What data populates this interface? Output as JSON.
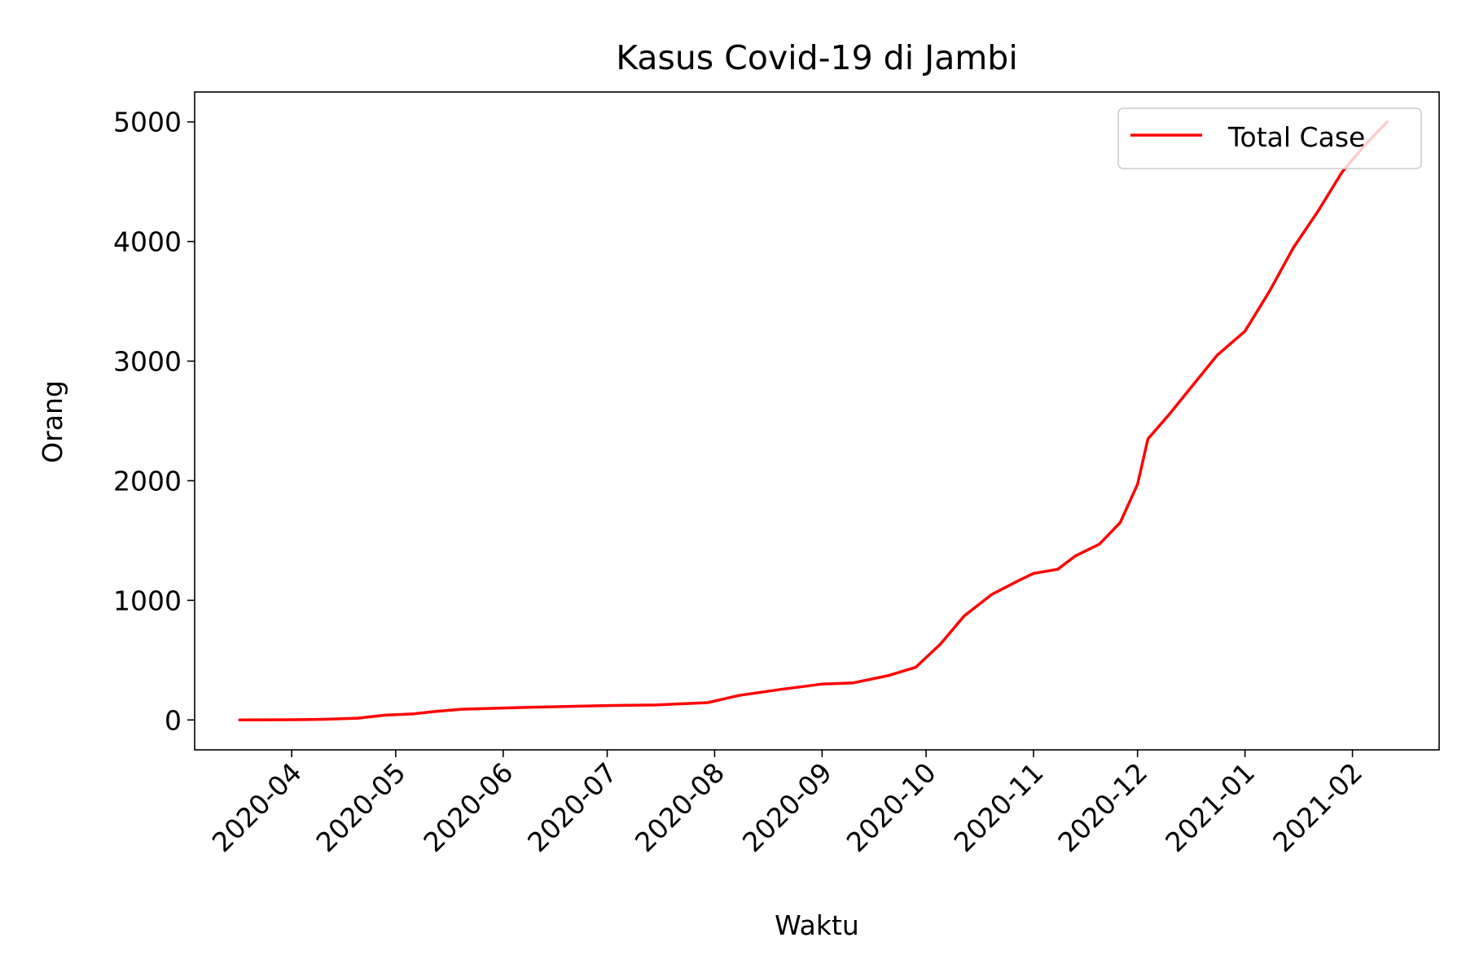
{
  "chart_data": {
    "type": "line",
    "title": "Kasus Covid-19 di Jambi",
    "xlabel": "Waktu",
    "ylabel": "Orang",
    "ylim": [
      -250,
      5250
    ],
    "xlim": [
      "2020-03-04",
      "2021-02-26"
    ],
    "legend_position": "top-right",
    "grid": false,
    "y_ticks": [
      0,
      1000,
      2000,
      3000,
      4000,
      5000
    ],
    "x_ticks": [
      "2020-04-01",
      "2020-05-01",
      "2020-06-01",
      "2020-07-01",
      "2020-08-01",
      "2020-09-01",
      "2020-10-01",
      "2020-11-01",
      "2020-12-01",
      "2021-01-01",
      "2021-02-01"
    ],
    "x_tick_labels": [
      "2020-04",
      "2020-05",
      "2020-06",
      "2020-07",
      "2020-08",
      "2020-09",
      "2020-10",
      "2020-11",
      "2020-12",
      "2021-01",
      "2021-02"
    ],
    "series": [
      {
        "name": "Total Case",
        "color": "#ff0000",
        "x": [
          "2020-03-17",
          "2020-03-25",
          "2020-04-01",
          "2020-04-10",
          "2020-04-20",
          "2020-04-28",
          "2020-05-06",
          "2020-05-12",
          "2020-05-20",
          "2020-06-01",
          "2020-06-15",
          "2020-07-01",
          "2020-07-15",
          "2020-07-30",
          "2020-08-08",
          "2020-08-20",
          "2020-09-01",
          "2020-09-10",
          "2020-09-20",
          "2020-09-28",
          "2020-10-05",
          "2020-10-12",
          "2020-10-20",
          "2020-10-28",
          "2020-11-01",
          "2020-11-08",
          "2020-11-13",
          "2020-11-20",
          "2020-11-26",
          "2020-12-01",
          "2020-12-04",
          "2020-12-10",
          "2020-12-17",
          "2020-12-24",
          "2021-01-01",
          "2021-01-08",
          "2021-01-15",
          "2021-01-22",
          "2021-01-29",
          "2021-02-05",
          "2021-02-11"
        ],
        "y": [
          0,
          1,
          2,
          5,
          15,
          40,
          50,
          70,
          90,
          100,
          110,
          120,
          125,
          145,
          205,
          255,
          300,
          310,
          370,
          440,
          630,
          870,
          1050,
          1170,
          1225,
          1260,
          1370,
          1470,
          1650,
          1970,
          2350,
          2550,
          2800,
          3050,
          3250,
          3580,
          3950,
          4250,
          4580,
          4820,
          5000
        ]
      }
    ]
  }
}
